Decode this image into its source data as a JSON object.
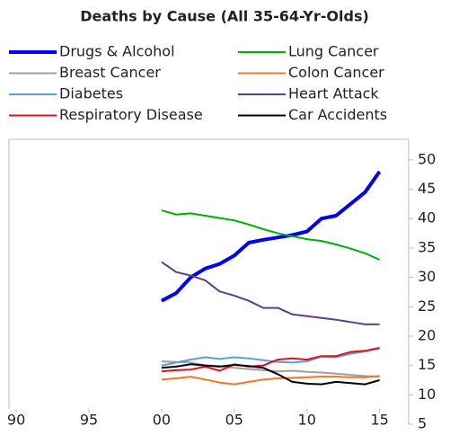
{
  "chart_data": {
    "type": "line",
    "title": "Deaths by Cause (All 35-64-Yr-Olds)",
    "x": [
      2000,
      2001,
      2002,
      2003,
      2004,
      2005,
      2006,
      2007,
      2008,
      2009,
      2010,
      2011,
      2012,
      2013,
      2014,
      2015
    ],
    "series": [
      {
        "name": "Drugs & Alcohol",
        "color": "#0000ff",
        "values": [
          26,
          27.3,
          30,
          31.5,
          32.3,
          33.7,
          35.9,
          36.4,
          36.8,
          37.2,
          37.8,
          40,
          40.5,
          42.5,
          44.5,
          48
        ]
      },
      {
        "name": "Lung Cancer",
        "color": "#00b000",
        "values": [
          41.4,
          40.7,
          40.9,
          40.5,
          40.1,
          39.7,
          39,
          38.2,
          37.5,
          37,
          36.5,
          36.2,
          35.6,
          34.9,
          34.1,
          33
        ]
      },
      {
        "name": "Breast Cancer",
        "color": "#a0a0a0",
        "values": [
          15.7,
          15.6,
          15.5,
          15,
          14.9,
          14.6,
          14.4,
          14.2,
          14,
          14.1,
          13.9,
          13.8,
          13.6,
          13.4,
          13.2,
          13.1
        ]
      },
      {
        "name": "Colon Cancer",
        "color": "#f07820",
        "values": [
          12.6,
          12.8,
          13.1,
          12.6,
          12.1,
          11.8,
          12.2,
          12.6,
          12.8,
          12.9,
          13,
          13.1,
          13.1,
          13,
          13,
          13.2
        ]
      },
      {
        "name": "Diabetes",
        "color": "#5aa0d8",
        "values": [
          15,
          15.5,
          16,
          16.4,
          16.1,
          16.4,
          16.2,
          15.9,
          15.6,
          15.5,
          15.7,
          16.5,
          16.4,
          17,
          17.4,
          17.9
        ]
      },
      {
        "name": "Heart Attack",
        "color": "#604080",
        "values": [
          32.6,
          30.9,
          30.3,
          29.5,
          27.6,
          26.9,
          26,
          24.8,
          24.8,
          23.7,
          23.4,
          23.1,
          22.8,
          22.4,
          22,
          22
        ]
      },
      {
        "name": "Respiratory Disease",
        "color": "#e0101e",
        "values": [
          14,
          14.2,
          14.3,
          14.8,
          14.1,
          15.2,
          14.8,
          15,
          16,
          16.2,
          16,
          16.6,
          16.6,
          17.3,
          17.5,
          18
        ]
      },
      {
        "name": "Car Accidents",
        "color": "#000000",
        "values": [
          14.6,
          14.8,
          15.2,
          15,
          14.8,
          15.1,
          14.9,
          14.6,
          13.5,
          12.2,
          11.9,
          11.8,
          12.2,
          12,
          11.8,
          12.5
        ]
      }
    ],
    "xlim": [
      1989.5,
      2017
    ],
    "xticks": [
      {
        "value": 1990,
        "label": "90"
      },
      {
        "value": 1995,
        "label": "95"
      },
      {
        "value": 2000,
        "label": "00"
      },
      {
        "value": 2005,
        "label": "05"
      },
      {
        "value": 2010,
        "label": "10"
      },
      {
        "value": 2015,
        "label": "15"
      }
    ],
    "ylim": [
      5,
      53.5
    ],
    "yticks": [
      5,
      10,
      15,
      20,
      25,
      30,
      35,
      40,
      45,
      50
    ]
  }
}
